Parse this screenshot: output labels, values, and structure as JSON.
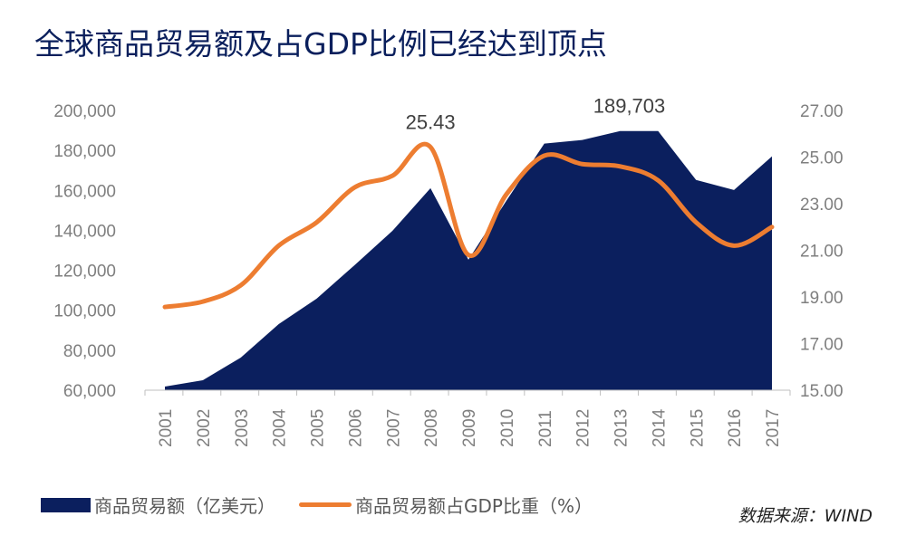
{
  "title": "全球商品贸易额及占GDP比例已经达到顶点",
  "source": "数据来源：WIND",
  "chart_data": {
    "type": "area+line",
    "categories": [
      "2001",
      "2002",
      "2003",
      "2004",
      "2005",
      "2006",
      "2007",
      "2008",
      "2009",
      "2010",
      "2011",
      "2012",
      "2013",
      "2014",
      "2015",
      "2016",
      "2017"
    ],
    "series": [
      {
        "name": "商品贸易额（亿美元）",
        "type": "area",
        "axis": "left",
        "color": "#0b1f5e",
        "values": [
          61800,
          65000,
          76300,
          93100,
          105800,
          122600,
          139800,
          161100,
          125300,
          154800,
          183400,
          185200,
          189703,
          189700,
          165200,
          160200,
          177000
        ]
      },
      {
        "name": "商品贸易额占GDP比重（%）",
        "type": "line",
        "axis": "right",
        "color": "#ed7d31",
        "values": [
          18.57,
          18.8,
          19.5,
          21.2,
          22.2,
          23.7,
          24.2,
          25.43,
          20.8,
          23.4,
          25.06,
          24.7,
          24.6,
          24.0,
          22.2,
          21.2,
          22.0
        ]
      }
    ],
    "left_axis": {
      "min": 60000,
      "max": 200000,
      "ticks": [
        "60,000",
        "80,000",
        "100,000",
        "120,000",
        "140,000",
        "160,000",
        "180,000",
        "200,000"
      ]
    },
    "right_axis": {
      "min": 15,
      "max": 27,
      "ticks": [
        "15.00",
        "17.00",
        "19.00",
        "21.00",
        "23.00",
        "25.00",
        "27.00"
      ]
    },
    "annotations": [
      {
        "text": "25.43",
        "category": "2008",
        "series": 1
      },
      {
        "text": "189,703",
        "category": "2013",
        "series": 0
      }
    ],
    "grid": false,
    "legend": "bottom-left"
  }
}
